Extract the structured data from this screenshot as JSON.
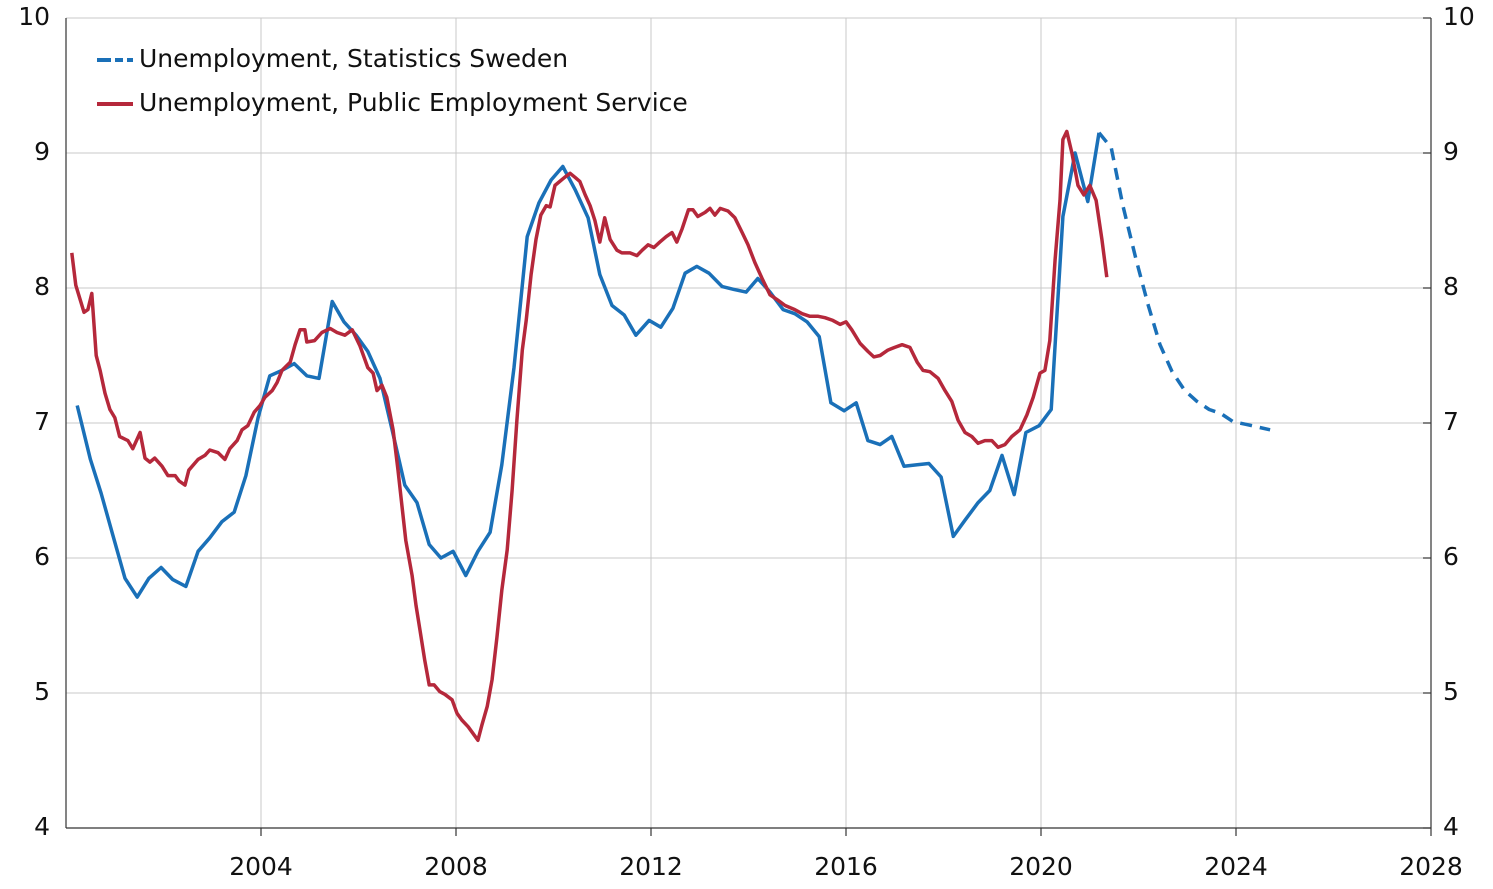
{
  "chart_data": {
    "type": "line",
    "xlim": [
      2000,
      2028
    ],
    "xticks": [
      2004,
      2008,
      2012,
      2016,
      2020,
      2024,
      2028
    ],
    "ylim": [
      4,
      10
    ],
    "yticks": [
      4,
      5,
      6,
      7,
      8,
      9,
      10
    ],
    "y2lim": [
      4,
      10
    ],
    "y2ticks": [
      4,
      5,
      6,
      7,
      8,
      9,
      10
    ],
    "grid": true,
    "legend": "upper left",
    "series": [
      {
        "name": "Unemployment, Statistics Sweden",
        "color": "#1a70b8",
        "x": [
          2000.23,
          2000.5,
          2000.72,
          2000.96,
          2001.21,
          2001.46,
          2001.7,
          2001.95,
          2002.19,
          2002.46,
          2002.71,
          2002.95,
          2003.2,
          2003.45,
          2003.69,
          2003.94,
          2004.18,
          2004.43,
          2004.68,
          2004.94,
          2005.19,
          2005.46,
          2005.7,
          2005.95,
          2006.19,
          2006.44,
          2006.69,
          2006.95,
          2007.2,
          2007.45,
          2007.69,
          2007.94,
          2008.2,
          2008.45,
          2008.7,
          2008.94,
          2009.19,
          2009.46,
          2009.7,
          2009.95,
          2010.19,
          2010.44,
          2010.71,
          2010.95,
          2011.2,
          2011.45,
          2011.69,
          2011.96,
          2012.2,
          2012.45,
          2012.7,
          2012.94,
          2013.19,
          2013.46,
          2013.7,
          2013.95,
          2014.19,
          2014.44,
          2014.71,
          2014.95,
          2015.2,
          2015.45,
          2015.69,
          2015.96,
          2016.21,
          2016.45,
          2016.7,
          2016.94,
          2017.19,
          2017.46,
          2017.7,
          2017.95,
          2018.2,
          2018.44,
          2018.71,
          2018.95,
          2019.2,
          2019.45,
          2019.69,
          2019.96,
          2020.21,
          2020.45,
          2020.7,
          2020.96,
          2021.19
        ],
        "values": [
          7.13,
          6.73,
          6.48,
          6.17,
          5.85,
          5.71,
          5.85,
          5.93,
          5.84,
          5.79,
          6.05,
          6.15,
          6.27,
          6.34,
          6.61,
          7.04,
          7.35,
          7.39,
          7.44,
          7.35,
          7.33,
          7.9,
          7.75,
          7.65,
          7.53,
          7.33,
          6.95,
          6.54,
          6.41,
          6.1,
          6.0,
          6.05,
          5.87,
          6.05,
          6.19,
          6.69,
          7.41,
          8.38,
          8.63,
          8.8,
          8.9,
          8.73,
          8.52,
          8.1,
          7.87,
          7.8,
          7.65,
          7.76,
          7.71,
          7.85,
          8.11,
          8.16,
          8.11,
          8.01,
          7.99,
          7.97,
          8.07,
          7.97,
          7.84,
          7.81,
          7.75,
          7.64,
          7.15,
          7.09,
          7.15,
          6.87,
          6.84,
          6.9,
          6.68,
          6.69,
          6.7,
          6.6,
          6.16,
          6.28,
          6.41,
          6.5,
          6.76,
          6.47,
          6.93,
          6.98,
          7.1,
          8.53,
          9.0,
          8.64,
          9.15
        ],
        "forecast": {
          "x": [
            2021.19,
            2021.44,
            2021.68,
            2021.95,
            2022.2,
            2022.44,
            2022.69,
            2022.95,
            2023.2,
            2023.45,
            2023.69,
            2023.94,
            2024.2,
            2024.45,
            2024.7
          ],
          "values": [
            9.15,
            9.04,
            8.61,
            8.21,
            7.87,
            7.58,
            7.38,
            7.24,
            7.16,
            7.1,
            7.07,
            7.01,
            6.99,
            6.97,
            6.95
          ]
        }
      },
      {
        "name": "Unemployment, Public Employment Service",
        "color": "#b5283b",
        "x": [
          2000.12,
          2000.2,
          2000.37,
          2000.45,
          2000.53,
          2000.62,
          2000.7,
          2000.8,
          2000.9,
          2001.0,
          2001.1,
          2001.27,
          2001.37,
          2001.52,
          2001.62,
          2001.72,
          2001.82,
          2001.97,
          2002.09,
          2002.24,
          2002.32,
          2002.44,
          2002.52,
          2002.71,
          2002.85,
          2002.95,
          2003.12,
          2003.26,
          2003.36,
          2003.51,
          2003.61,
          2003.73,
          2003.86,
          2003.98,
          2004.08,
          2004.23,
          2004.33,
          2004.43,
          2004.6,
          2004.7,
          2004.8,
          2004.9,
          2004.94,
          2005.1,
          2005.25,
          2005.42,
          2005.56,
          2005.72,
          2005.87,
          2006.03,
          2006.19,
          2006.3,
          2006.38,
          2006.48,
          2006.58,
          2006.71,
          2006.81,
          2006.89,
          2006.97,
          2007.1,
          2007.18,
          2007.26,
          2007.36,
          2007.45,
          2007.55,
          2007.67,
          2007.77,
          2007.92,
          2008.02,
          2008.12,
          2008.25,
          2008.37,
          2008.45,
          2008.53,
          2008.64,
          2008.74,
          2008.84,
          2008.94,
          2009.05,
          2009.15,
          2009.25,
          2009.36,
          2009.44,
          2009.54,
          2009.64,
          2009.74,
          2009.85,
          2009.93,
          2010.03,
          2010.13,
          2010.23,
          2010.34,
          2010.44,
          2010.54,
          2010.65,
          2010.75,
          2010.85,
          2010.95,
          2011.05,
          2011.16,
          2011.3,
          2011.4,
          2011.57,
          2011.71,
          2011.82,
          2011.94,
          2012.06,
          2012.18,
          2012.31,
          2012.43,
          2012.53,
          2012.64,
          2012.77,
          2012.86,
          2012.96,
          2013.11,
          2013.21,
          2013.31,
          2013.42,
          2013.58,
          2013.72,
          2013.87,
          2013.99,
          2014.13,
          2014.28,
          2014.44,
          2014.6,
          2014.75,
          2014.95,
          2015.1,
          2015.26,
          2015.43,
          2015.57,
          2015.73,
          2015.88,
          2016.0,
          2016.12,
          2016.29,
          2016.45,
          2016.57,
          2016.7,
          2016.86,
          2017.0,
          2017.15,
          2017.31,
          2017.46,
          2017.58,
          2017.72,
          2017.89,
          2018.03,
          2018.17,
          2018.3,
          2018.44,
          2018.58,
          2018.71,
          2018.85,
          2018.99,
          2019.12,
          2019.26,
          2019.4,
          2019.57,
          2019.71,
          2019.84,
          2019.98,
          2020.08,
          2020.18,
          2020.29,
          2020.39,
          2020.45,
          2020.53,
          2020.64,
          2020.76,
          2020.88,
          2021.0,
          2021.13,
          2021.25,
          2021.35
        ],
        "values": [
          8.26,
          8.02,
          7.82,
          7.84,
          7.96,
          7.5,
          7.39,
          7.22,
          7.1,
          7.04,
          6.9,
          6.87,
          6.81,
          6.93,
          6.74,
          6.71,
          6.74,
          6.68,
          6.61,
          6.61,
          6.57,
          6.54,
          6.65,
          6.73,
          6.76,
          6.8,
          6.78,
          6.73,
          6.81,
          6.87,
          6.95,
          6.98,
          7.08,
          7.13,
          7.19,
          7.24,
          7.3,
          7.39,
          7.45,
          7.58,
          7.69,
          7.69,
          7.6,
          7.61,
          7.67,
          7.7,
          7.67,
          7.65,
          7.69,
          7.57,
          7.41,
          7.37,
          7.24,
          7.28,
          7.19,
          6.95,
          6.65,
          6.39,
          6.13,
          5.87,
          5.65,
          5.47,
          5.24,
          5.06,
          5.06,
          5.01,
          4.99,
          4.95,
          4.85,
          4.8,
          4.75,
          4.69,
          4.65,
          4.76,
          4.9,
          5.1,
          5.41,
          5.76,
          6.06,
          6.5,
          7.02,
          7.54,
          7.76,
          8.1,
          8.36,
          8.54,
          8.61,
          8.6,
          8.76,
          8.79,
          8.82,
          8.85,
          8.82,
          8.79,
          8.69,
          8.61,
          8.5,
          8.34,
          8.52,
          8.36,
          8.28,
          8.26,
          8.26,
          8.24,
          8.28,
          8.32,
          8.3,
          8.34,
          8.38,
          8.41,
          8.34,
          8.44,
          8.58,
          8.58,
          8.53,
          8.56,
          8.59,
          8.54,
          8.59,
          8.57,
          8.52,
          8.41,
          8.32,
          8.19,
          8.07,
          7.95,
          7.91,
          7.87,
          7.84,
          7.81,
          7.79,
          7.79,
          7.78,
          7.76,
          7.73,
          7.75,
          7.69,
          7.59,
          7.53,
          7.49,
          7.5,
          7.54,
          7.56,
          7.58,
          7.56,
          7.45,
          7.39,
          7.38,
          7.33,
          7.24,
          7.16,
          7.02,
          6.93,
          6.9,
          6.85,
          6.87,
          6.87,
          6.82,
          6.84,
          6.9,
          6.95,
          7.06,
          7.19,
          7.37,
          7.39,
          7.61,
          8.21,
          8.65,
          9.1,
          9.16,
          8.99,
          8.76,
          8.69,
          8.76,
          8.65,
          8.36,
          8.08
        ]
      }
    ]
  }
}
